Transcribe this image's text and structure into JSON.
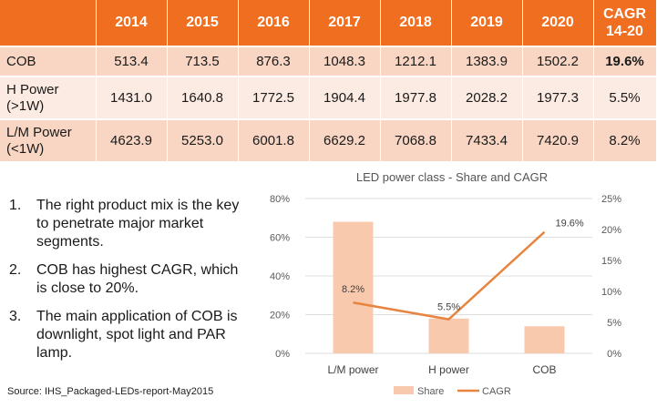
{
  "table": {
    "headers": [
      "2014",
      "2015",
      "2016",
      "2017",
      "2018",
      "2019",
      "2020"
    ],
    "cagr_header": [
      "CAGR",
      "14-20"
    ],
    "rows": [
      {
        "label": [
          "COB"
        ],
        "values": [
          "513.4",
          "713.5",
          "876.3",
          "1048.3",
          "1212.1",
          "1383.9",
          "1502.2"
        ],
        "cagr": "19.6%"
      },
      {
        "label": [
          "H Power",
          "(>1W)"
        ],
        "values": [
          "1431.0",
          "1640.8",
          "1772.5",
          "1904.4",
          "1977.8",
          "2028.2",
          "1977.3"
        ],
        "cagr": "5.5%"
      },
      {
        "label": [
          "L/M Power",
          "(<1W)"
        ],
        "values": [
          "4623.9",
          "5253.0",
          "6001.8",
          "6629.2",
          "7068.8",
          "7433.4",
          "7420.9"
        ],
        "cagr": "8.2%"
      }
    ]
  },
  "notes": [
    {
      "num": "1.",
      "text": "The right product mix is the key to penetrate major market segments."
    },
    {
      "num": "2.",
      "text": "COB has highest CAGR, which is close to 20%."
    },
    {
      "num": "3.",
      "text": "The main application of COB is downlight, spot light and PAR lamp."
    }
  ],
  "source": "Source: IHS_Packaged-LEDs-report-May2015",
  "chart_data": {
    "type": "bar+line",
    "title": "LED power class - Share and CAGR",
    "categories": [
      "L/M power",
      "H power",
      "COB"
    ],
    "series": [
      {
        "name": "Share",
        "type": "bar",
        "axis": "left",
        "values": [
          68,
          18,
          14
        ]
      },
      {
        "name": "CAGR",
        "type": "line",
        "axis": "right",
        "values": [
          8.2,
          5.5,
          19.6
        ],
        "labels": [
          "8.2%",
          "5.5%",
          "19.6%"
        ]
      }
    ],
    "y_left": {
      "ticks": [
        "0%",
        "20%",
        "40%",
        "60%",
        "80%"
      ],
      "range": [
        0,
        80
      ]
    },
    "y_right": {
      "ticks": [
        "0%",
        "5%",
        "10%",
        "15%",
        "20%",
        "25%"
      ],
      "range": [
        0,
        25
      ]
    },
    "legend": [
      "Share",
      "CAGR"
    ],
    "legend_position": "bottom",
    "colors": {
      "share": "#f8c9ad",
      "cagr": "#e8843f"
    }
  },
  "colors": {
    "header": "#ef6e1f",
    "row_dark": "#f8d6c3",
    "row_light": "#fcebe2"
  }
}
